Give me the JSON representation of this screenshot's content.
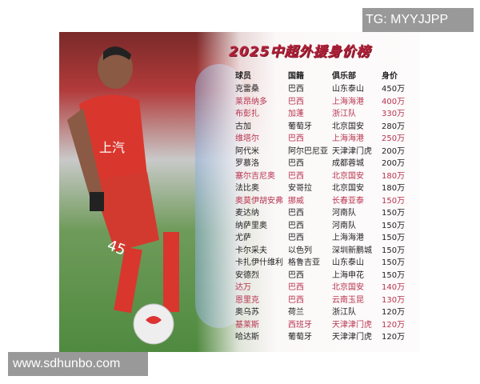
{
  "watermarks": {
    "top_right": "TG: MYYJJPP",
    "bottom_left": "www.sdhunbo.com"
  },
  "poster": {
    "title": "2025中超外援身价榜",
    "headers": [
      "球员",
      "国籍",
      "俱乐部",
      "身价"
    ],
    "rows": [
      {
        "player": "克雷桑",
        "nation": "巴西",
        "club": "山东泰山",
        "value": "450万",
        "highlight": false
      },
      {
        "player": "莱昂纳多",
        "nation": "巴西",
        "club": "上海海港",
        "value": "400万",
        "highlight": true
      },
      {
        "player": "布彭扎",
        "nation": "加蓬",
        "club": "浙江队",
        "value": "330万",
        "highlight": true
      },
      {
        "player": "古加",
        "nation": "葡萄牙",
        "club": "北京国安",
        "value": "280万",
        "highlight": false
      },
      {
        "player": "维塔尔",
        "nation": "巴西",
        "club": "上海海港",
        "value": "250万",
        "highlight": true
      },
      {
        "player": "阿代米",
        "nation": "阿尔巴尼亚",
        "club": "天津津门虎",
        "value": "200万",
        "highlight": false
      },
      {
        "player": "罗慕洛",
        "nation": "巴西",
        "club": "成都蓉城",
        "value": "200万",
        "highlight": false
      },
      {
        "player": "塞尔吉尼奥",
        "nation": "巴西",
        "club": "北京国安",
        "value": "180万",
        "highlight": true
      },
      {
        "player": "法比奥",
        "nation": "安哥拉",
        "club": "北京国安",
        "value": "180万",
        "highlight": false
      },
      {
        "player": "奥莫伊胡安弗",
        "nation": "挪威",
        "club": "长春亚泰",
        "value": "150万",
        "highlight": true
      },
      {
        "player": "麦达纳",
        "nation": "巴西",
        "club": "河南队",
        "value": "150万",
        "highlight": false
      },
      {
        "player": "纳萨里奥",
        "nation": "巴西",
        "club": "河南队",
        "value": "150万",
        "highlight": false
      },
      {
        "player": "尤萨",
        "nation": "巴西",
        "club": "上海海港",
        "value": "150万",
        "highlight": false
      },
      {
        "player": "卡尔采夫",
        "nation": "以色列",
        "club": "深圳新鹏城",
        "value": "150万",
        "highlight": false
      },
      {
        "player": "卡扎伊什维利",
        "nation": "格鲁吉亚",
        "club": "山东泰山",
        "value": "150万",
        "highlight": false
      },
      {
        "player": "安德烈",
        "nation": "巴西",
        "club": "上海申花",
        "value": "150万",
        "highlight": false
      },
      {
        "player": "达万",
        "nation": "巴西",
        "club": "北京国安",
        "value": "140万",
        "highlight": true
      },
      {
        "player": "恩里克",
        "nation": "巴西",
        "club": "云南玉昆",
        "value": "130万",
        "highlight": true
      },
      {
        "player": "奥乌苏",
        "nation": "荷兰",
        "club": "浙江队",
        "value": "120万",
        "highlight": false
      },
      {
        "player": "基莱斯",
        "nation": "西班牙",
        "club": "天津津门虎",
        "value": "120万",
        "highlight": true
      },
      {
        "player": "哈达斯",
        "nation": "葡萄牙",
        "club": "天津津门虎",
        "value": "120万",
        "highlight": false
      }
    ],
    "colors": {
      "title": "#b0223a",
      "highlight": "#b8344f",
      "text": "#222222"
    }
  }
}
